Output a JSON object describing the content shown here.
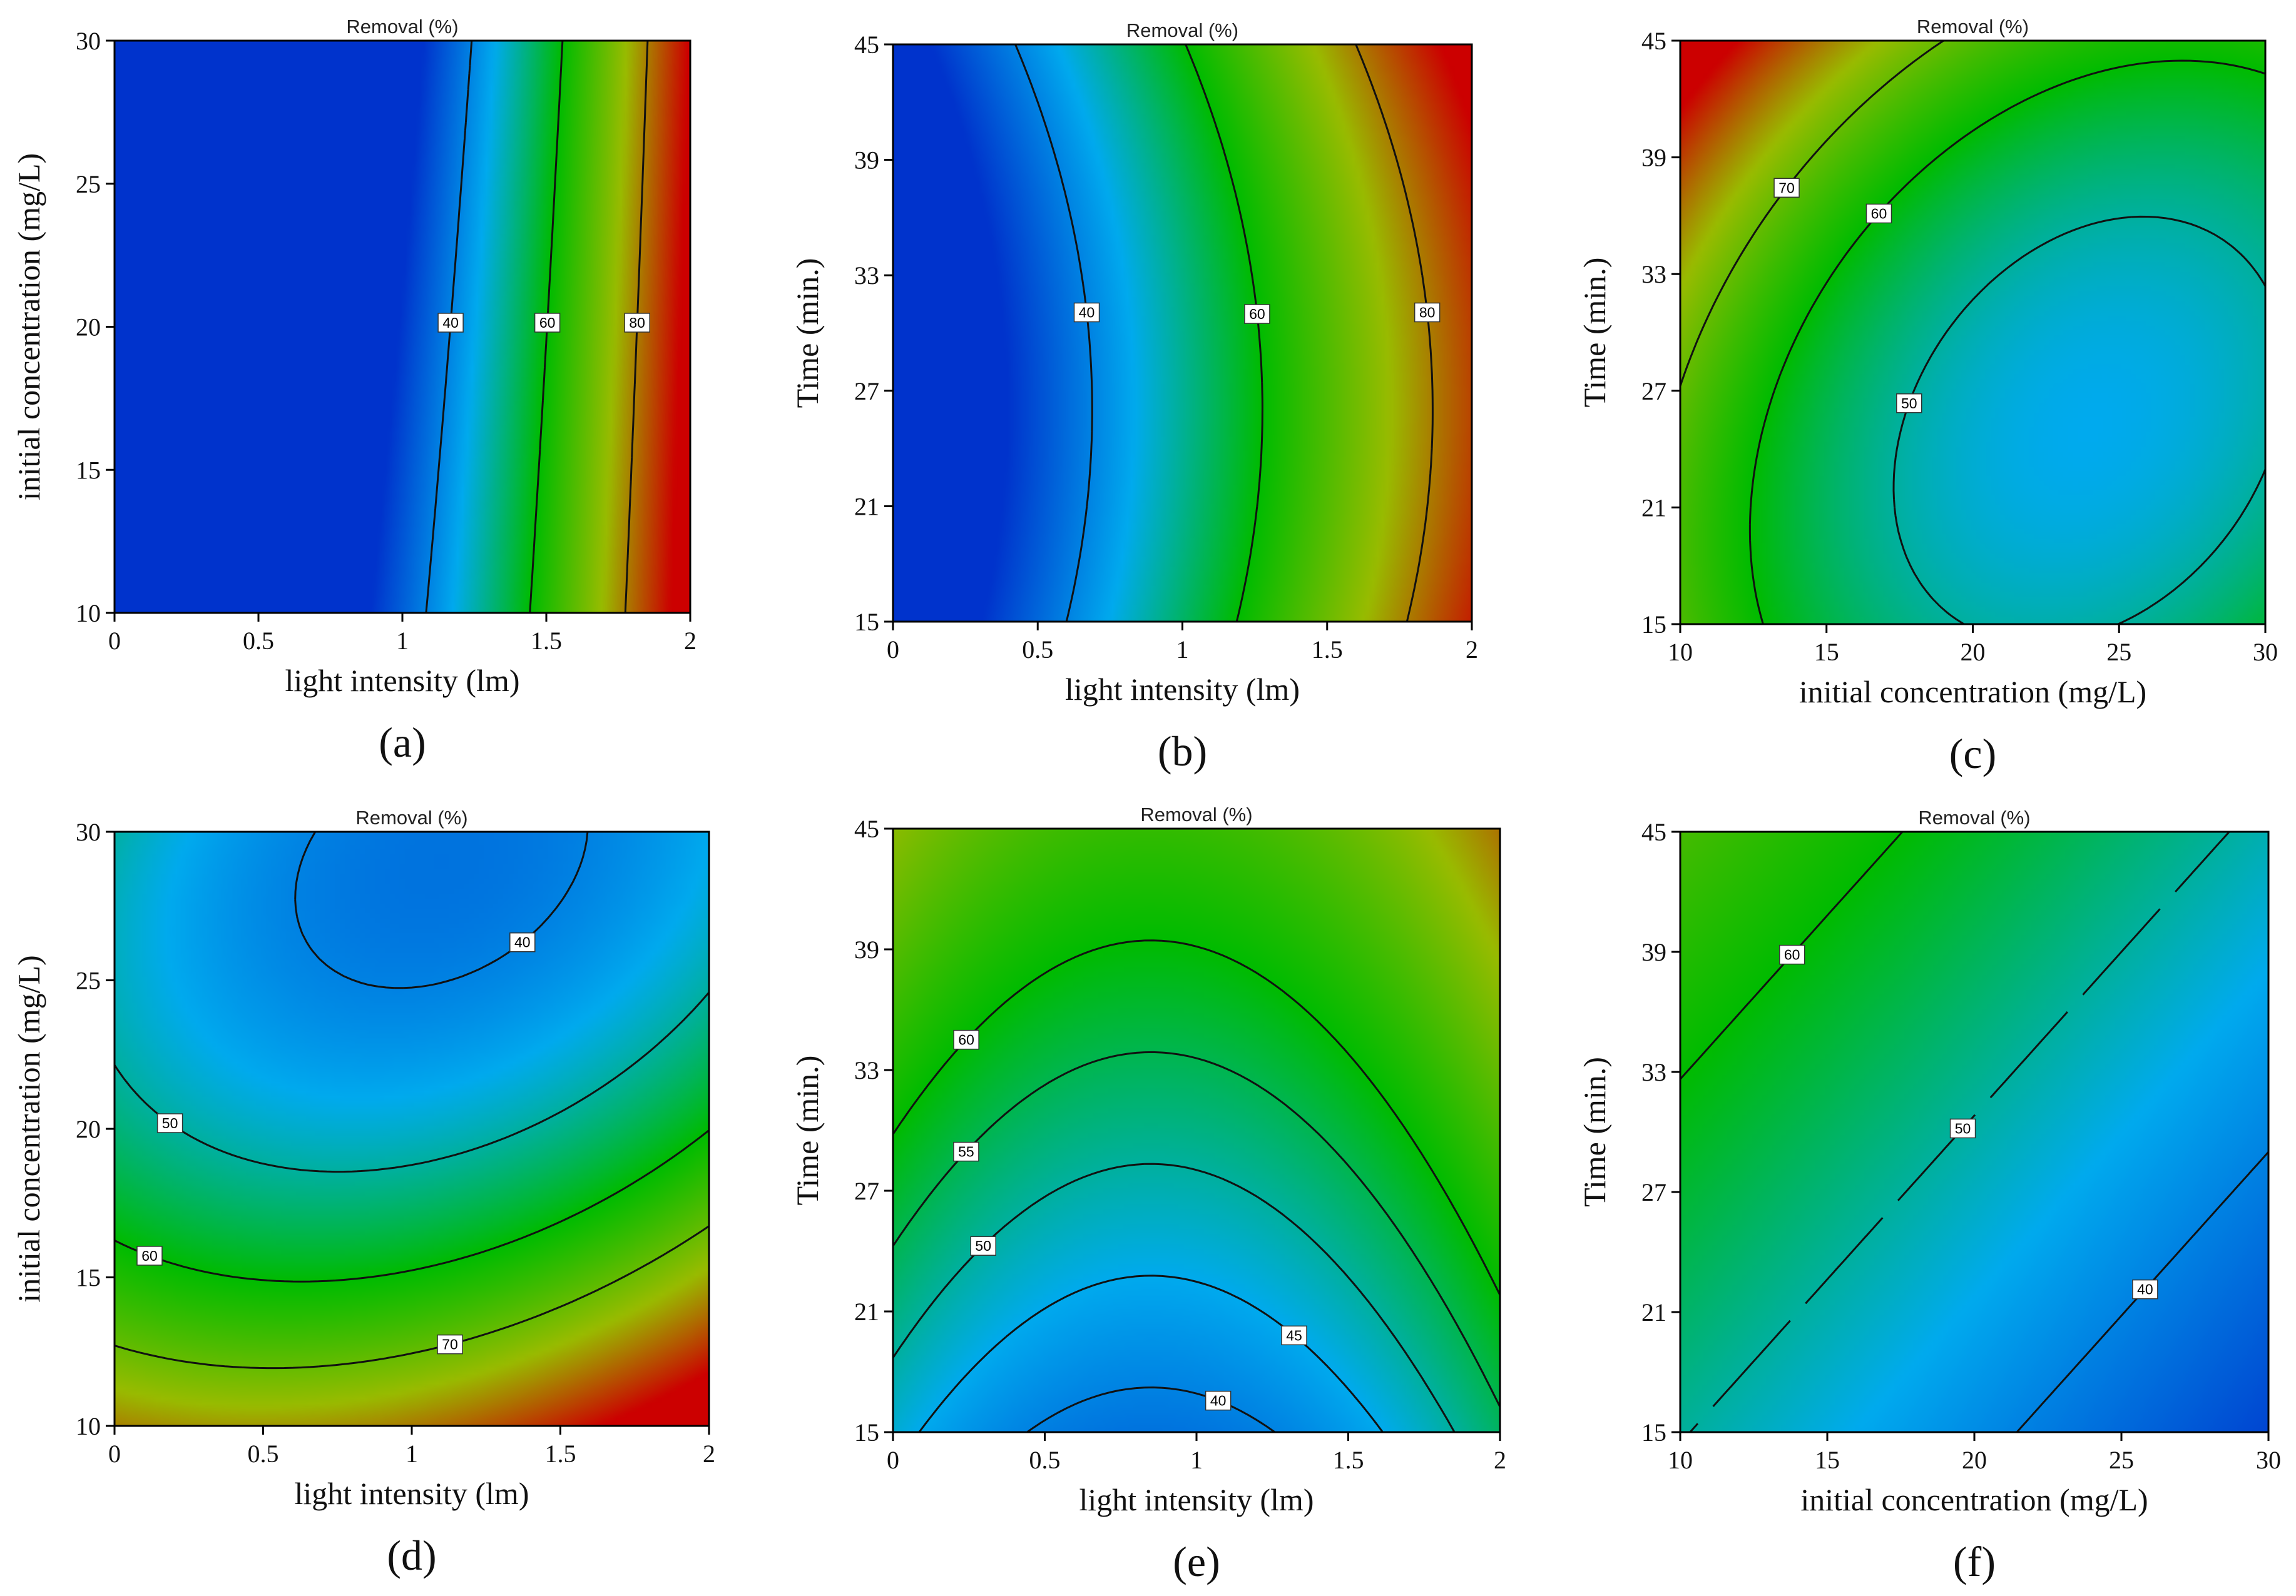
{
  "chart_data": [
    {
      "type": "heatmap",
      "caption": "(a)",
      "title": "Removal (%)",
      "xlabel": "light intensity (lm)",
      "ylabel": "initial concentration (mg/L)",
      "xlim": [
        0,
        2
      ],
      "ylim": [
        10,
        30
      ],
      "xticks": [
        "0",
        "0.5",
        "1",
        "1.5",
        "2"
      ],
      "yticks": [
        "10",
        "15",
        "20",
        "25",
        "30"
      ],
      "colorscale": [
        "#0033cc",
        "#00aaee",
        "#00bb00",
        "#99bb00",
        "#cc0000"
      ],
      "value_range": [
        30,
        90
      ],
      "model": {
        "c0": 20,
        "cx": 52,
        "cy": -0.56,
        "cxx": 7,
        "cyy": 0.0,
        "cxy": 0.3,
        "x0": 0.8,
        "y0": 20
      },
      "contour_levels": [
        40,
        60,
        80
      ],
      "contour_labels": [
        "40",
        "60",
        "80"
      ]
    },
    {
      "type": "heatmap",
      "caption": "(b)",
      "title": "Removal (%)",
      "xlabel": "light intensity (lm)",
      "ylabel": "Time (min.)",
      "xlim": [
        0,
        2
      ],
      "ylim": [
        15,
        45
      ],
      "xticks": [
        "0",
        "0.5",
        "1",
        "1.5",
        "2"
      ],
      "yticks": [
        "15",
        "21",
        "27",
        "33",
        "39",
        "45"
      ],
      "colorscale": [
        "#0033cc",
        "#00aaee",
        "#00bb00",
        "#99bb00",
        "#cc0000"
      ],
      "value_range": [
        30,
        90
      ],
      "model": {
        "c0": 17,
        "cx": 34,
        "cy": 0.2,
        "cxx": 0,
        "cyy": 0.025,
        "cxy": 0,
        "x0": 0,
        "y0": 30
      },
      "contour_levels": [
        40,
        60,
        80
      ],
      "contour_labels": [
        "40",
        "60",
        "80"
      ]
    },
    {
      "type": "heatmap",
      "caption": "(c)",
      "title": "Removal (%)",
      "xlabel": "initial concentration (mg/L)",
      "ylabel": "Time (min.)",
      "xlim": [
        10,
        30
      ],
      "ylim": [
        15,
        45
      ],
      "xticks": [
        "10",
        "15",
        "20",
        "25",
        "30"
      ],
      "yticks": [
        "15",
        "21",
        "27",
        "33",
        "39",
        "45"
      ],
      "colorscale": [
        "#0033cc",
        "#00aaee",
        "#00bb00",
        "#99bb00",
        "#cc0000"
      ],
      "value_range": [
        30,
        90
      ],
      "model": {
        "c0": 45,
        "cx": 0,
        "cy": 0,
        "cxx": 0.12,
        "cyy": 0.045,
        "cxy": -0.04,
        "x0": 24,
        "y0": 25
      },
      "contour_levels": [
        50,
        60,
        70
      ],
      "contour_labels": [
        "50",
        "60",
        "70"
      ]
    },
    {
      "type": "heatmap",
      "caption": "(d)",
      "title": "Removal (%)",
      "xlabel": "light intensity (lm)",
      "ylabel": "initial concentration (mg/L)",
      "xlim": [
        0,
        2
      ],
      "ylim": [
        10,
        30
      ],
      "xticks": [
        "0",
        "0.5",
        "1",
        "1.5",
        "2"
      ],
      "yticks": [
        "10",
        "15",
        "20",
        "25",
        "30"
      ],
      "colorscale": [
        "#0033cc",
        "#00aaee",
        "#00bb00",
        "#99bb00",
        "#cc0000"
      ],
      "value_range": [
        30,
        90
      ],
      "model": {
        "c0": 38,
        "cx": 0,
        "cy": 0,
        "cxx": 9,
        "cyy": 0.12,
        "cxy": -0.6,
        "x0": 1.1,
        "y0": 29
      },
      "contour_levels": [
        40,
        50,
        60,
        70
      ],
      "contour_labels": [
        "40",
        "50",
        "60",
        "70"
      ]
    },
    {
      "type": "heatmap",
      "caption": "(e)",
      "title": "Removal (%)",
      "xlabel": "light intensity (lm)",
      "ylabel": "Time (min.)",
      "xlim": [
        0,
        2
      ],
      "ylim": [
        15,
        45
      ],
      "xticks": [
        "0",
        "0.5",
        "1",
        "1.5",
        "2"
      ],
      "yticks": [
        "15",
        "21",
        "27",
        "33",
        "39",
        "45"
      ],
      "colorscale": [
        "#0033cc",
        "#00aaee",
        "#00bb00",
        "#99bb00",
        "#cc0000"
      ],
      "value_range": [
        30,
        90
      ],
      "model": {
        "c0": 38,
        "cx": 0,
        "cy": 0.9,
        "cxx": 12,
        "cyy": 0.0,
        "cxy": 0,
        "x0": 0.85,
        "y0": 15
      },
      "contour_levels": [
        40,
        45,
        50,
        55,
        60
      ],
      "contour_labels": [
        "40",
        "45",
        "50",
        "55",
        "60"
      ]
    },
    {
      "type": "heatmap",
      "caption": "(f)",
      "title": "Removal (%)",
      "xlabel": "initial concentration (mg/L)",
      "ylabel": "Time (min.)",
      "xlim": [
        10,
        30
      ],
      "ylim": [
        15,
        45
      ],
      "xticks": [
        "10",
        "15",
        "20",
        "25",
        "30"
      ],
      "yticks": [
        "15",
        "21",
        "27",
        "33",
        "39",
        "45"
      ],
      "colorscale": [
        "#0033cc",
        "#00aaee",
        "#00bb00",
        "#99bb00",
        "#cc0000"
      ],
      "value_range": [
        30,
        90
      ],
      "model": {
        "c0": 33,
        "cx": 0,
        "cy": 0,
        "cxx": 0.035,
        "cyy": 0,
        "cxy": 0,
        "x0": 32,
        "y0": 0,
        "lin_x": -0.9,
        "lin_y": 0.55,
        "lx0": 22,
        "ly0": 25,
        "lin_c": 45
      },
      "contour_levels": [
        40,
        50,
        60
      ],
      "contour_labels": [
        "40",
        "50",
        "60"
      ]
    }
  ]
}
